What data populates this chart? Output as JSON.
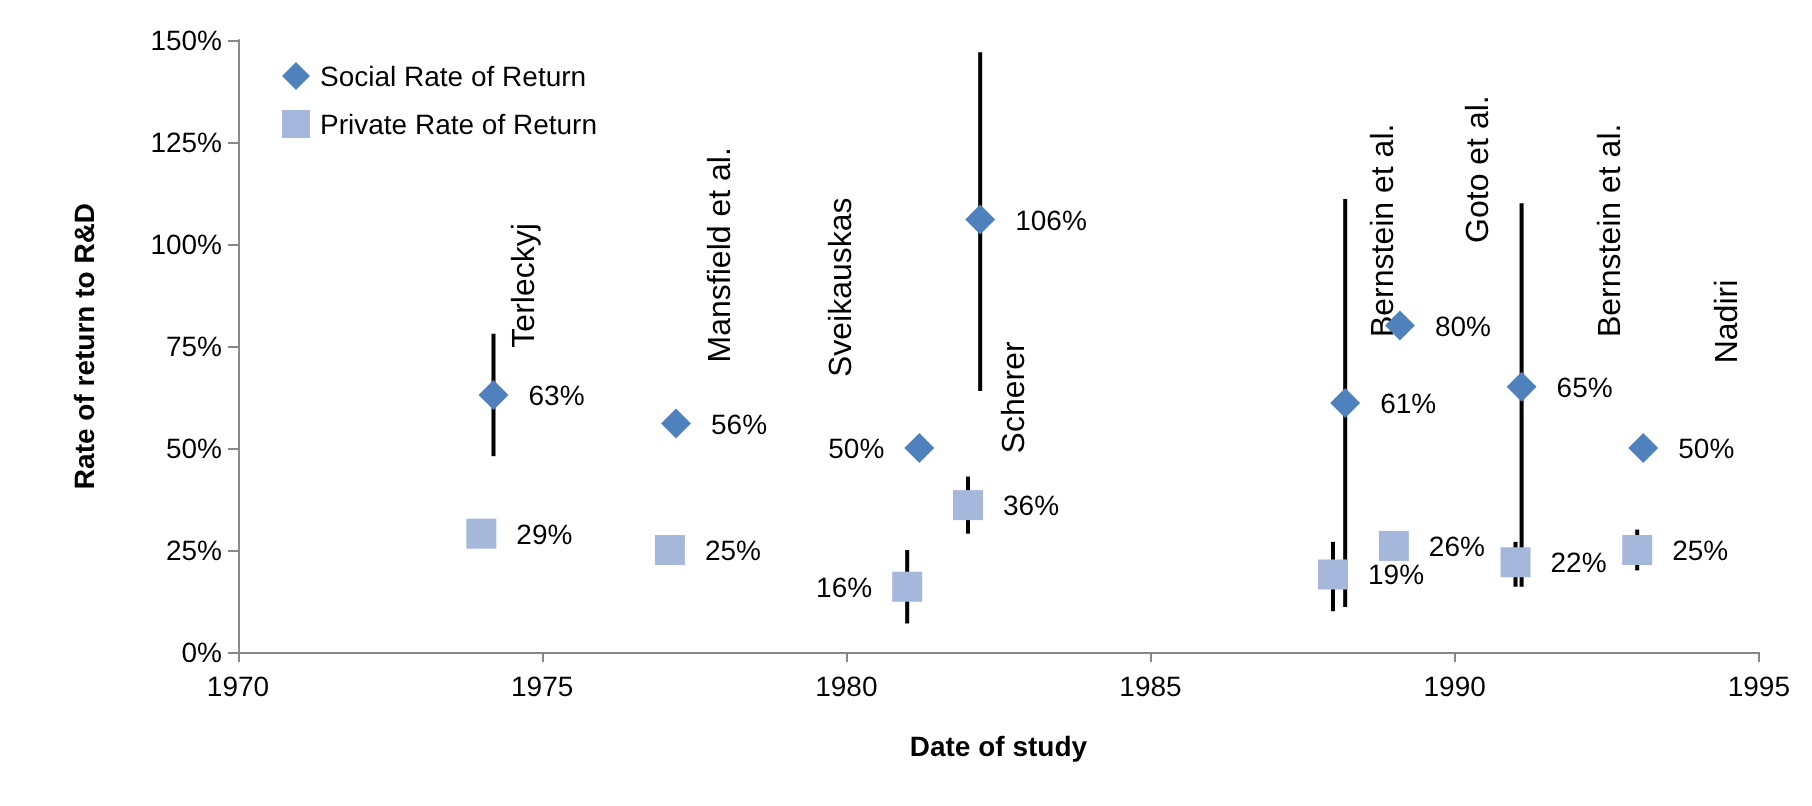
{
  "chart_data": {
    "type": "scatter",
    "xlabel": "Date of study",
    "ylabel": "Rate of return to R&D",
    "xlim": [
      1970,
      1995
    ],
    "xticks": [
      1970,
      1975,
      1980,
      1985,
      1990,
      1995
    ],
    "ylim": [
      0,
      150
    ],
    "yticks": [
      {
        "value": 0,
        "label": "0%"
      },
      {
        "value": 25,
        "label": "25%"
      },
      {
        "value": 50,
        "label": "50%"
      },
      {
        "value": 75,
        "label": "75%"
      },
      {
        "value": 100,
        "label": "100%"
      },
      {
        "value": 125,
        "label": "125%"
      },
      {
        "value": 150,
        "label": "150%"
      }
    ],
    "grid": false,
    "legend": "top left",
    "series": [
      {
        "name": "Social Rate of Return",
        "color": "#4f81bd",
        "marker": "diamond",
        "x": [
          1974.2,
          1977.2,
          1981.2,
          1982.2,
          1988.2,
          1989.1,
          1991.1,
          1993.1
        ],
        "values": [
          63,
          56,
          50,
          106,
          61,
          80,
          65,
          50
        ],
        "errors": [
          [
            48,
            78
          ],
          null,
          null,
          [
            64,
            147
          ],
          [
            11,
            111
          ],
          null,
          [
            16,
            110
          ],
          null
        ],
        "value_labels": [
          "63%",
          "56%",
          "50%",
          "106%",
          "61%",
          "80%",
          "65%",
          "50%"
        ]
      },
      {
        "name": "Private Rate of Return",
        "color": "#a5b8dc",
        "marker": "square",
        "x": [
          1974,
          1977.1,
          1981,
          1982,
          1988,
          1989,
          1991,
          1993
        ],
        "values": [
          29,
          25,
          16,
          36,
          19,
          26,
          22,
          25
        ],
        "errors": [
          null,
          null,
          [
            7,
            25
          ],
          [
            29,
            43
          ],
          [
            10,
            27
          ],
          null,
          [
            16,
            27
          ],
          [
            20,
            30
          ]
        ],
        "value_labels": [
          "29%",
          "25%",
          "16%",
          "36%",
          "19%",
          "26%",
          "22%",
          "25%"
        ]
      }
    ],
    "annotations": [
      "Terleckyj",
      "Mansfield et al.",
      "Sveikauskas",
      "Scherer",
      "Bernstein et al.",
      "Goto et al.",
      "Bernstein et al.",
      "Nadiri"
    ]
  }
}
